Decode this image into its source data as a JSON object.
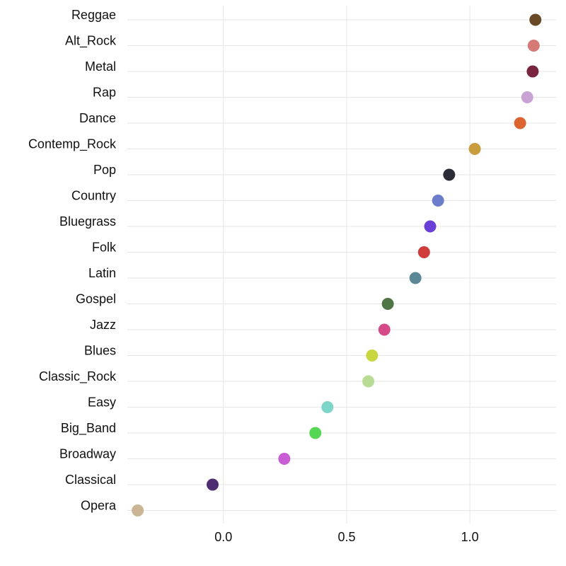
{
  "chart_data": {
    "type": "scatter",
    "title": "",
    "xlabel": "",
    "ylabel": "",
    "xlim": [
      -0.39,
      1.35
    ],
    "x_ticks": [
      0.0,
      0.5,
      1.0
    ],
    "x_tick_labels": [
      "0.0",
      "0.5",
      "1.0"
    ],
    "grid": true,
    "legend": "none",
    "categories": [
      "Reggae",
      "Alt_Rock",
      "Metal",
      "Rap",
      "Dance",
      "Contemp_Rock",
      "Pop",
      "Country",
      "Bluegrass",
      "Folk",
      "Latin",
      "Gospel",
      "Jazz",
      "Blues",
      "Classic_Rock",
      "Easy",
      "Big_Band",
      "Broadway",
      "Classical",
      "Opera"
    ],
    "values": [
      1.266,
      1.259,
      1.255,
      1.233,
      1.204,
      1.02,
      0.916,
      0.871,
      0.839,
      0.814,
      0.779,
      0.667,
      0.653,
      0.603,
      0.588,
      0.422,
      0.373,
      0.247,
      -0.044,
      -0.348
    ],
    "colors": [
      "#6A4A26",
      "#D57A75",
      "#7A2540",
      "#C8A3D3",
      "#DC6430",
      "#C99C3D",
      "#2B2D36",
      "#6C7DCB",
      "#6A3FD8",
      "#CF3C3C",
      "#5C8796",
      "#4F7445",
      "#D54B8A",
      "#C8D63F",
      "#B8DC93",
      "#7ED5C9",
      "#55D655",
      "#C85DD5",
      "#4E2D73",
      "#CAB594"
    ]
  }
}
